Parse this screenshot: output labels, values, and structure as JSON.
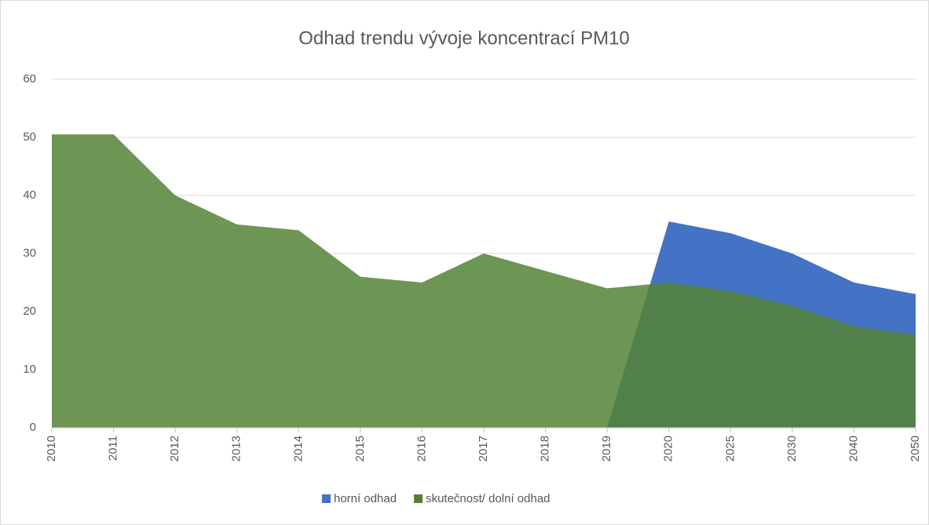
{
  "chart_data": {
    "type": "area",
    "title": "Odhad trendu vývoje koncentrací PM10",
    "categories": [
      "2010",
      "2011",
      "2012",
      "2013",
      "2014",
      "2015",
      "2016",
      "2017",
      "2018",
      "2019",
      "2020",
      "2025",
      "2030",
      "2040",
      "2050"
    ],
    "series": [
      {
        "name": "horní odhad",
        "color": "#4472c4",
        "values": [
          0,
          0,
          0,
          0,
          0,
          0,
          0,
          0,
          0,
          0,
          35.5,
          33.5,
          30,
          25,
          23
        ]
      },
      {
        "name": "skutečnost/ dolní odhad",
        "color": "#548235",
        "values": [
          50.5,
          50.5,
          40,
          35,
          34,
          26,
          25,
          30,
          27,
          24,
          25,
          23.5,
          21,
          17.5,
          16
        ]
      }
    ],
    "ylim": [
      0,
      60
    ],
    "yticks": [
      0,
      10,
      20,
      30,
      40,
      50,
      60
    ],
    "grid": true,
    "legend": "bottom"
  }
}
